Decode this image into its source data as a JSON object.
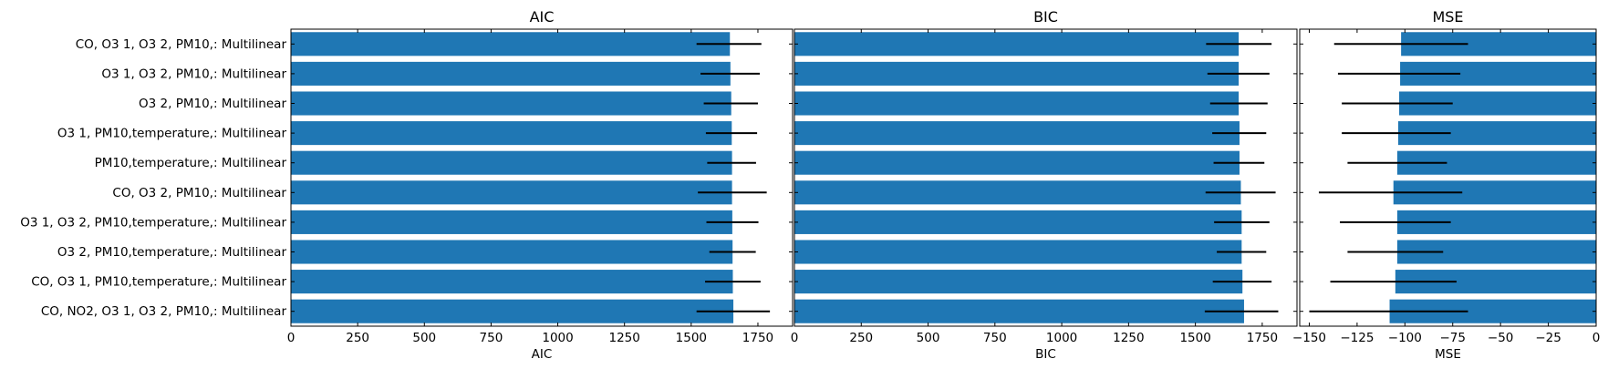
{
  "chart_data": {
    "type": "bar",
    "orientation": "horizontal",
    "categories": [
      "CO, O3 1, O3 2, PM10,: Multilinear",
      "O3 1, O3 2, PM10,: Multilinear",
      "O3 2, PM10,: Multilinear",
      "O3 1, PM10,temperature,: Multilinear",
      "PM10,temperature,: Multilinear",
      "CO, O3 2, PM10,: Multilinear",
      "O3 1, O3 2, PM10,temperature,: Multilinear",
      "O3 2, PM10,temperature,: Multilinear",
      "CO, O3 1, PM10,temperature,: Multilinear",
      "CO, NO2, O3 1, O3 2, PM10,: Multilinear"
    ],
    "bar_color": "#1f77b4",
    "error_color": "#000000",
    "panels": [
      {
        "title": "AIC",
        "xlabel": "AIC",
        "xlim": [
          0,
          1880
        ],
        "ticks": [
          0,
          250,
          500,
          750,
          1000,
          1250,
          1500,
          1750
        ],
        "tick_labels": [
          "0",
          "250",
          "500",
          "750",
          "1000",
          "1250",
          "1500",
          "1750"
        ],
        "values": [
          1645,
          1647,
          1650,
          1652,
          1653,
          1653,
          1654,
          1655,
          1656,
          1658
        ],
        "err_low": [
          1520,
          1535,
          1547,
          1555,
          1560,
          1525,
          1557,
          1568,
          1552,
          1520
        ],
        "err_high": [
          1763,
          1757,
          1750,
          1747,
          1743,
          1783,
          1752,
          1742,
          1760,
          1795
        ]
      },
      {
        "title": "BIC",
        "xlabel": "BIC",
        "xlim": [
          0,
          1880
        ],
        "ticks": [
          0,
          250,
          500,
          750,
          1000,
          1250,
          1500,
          1750
        ],
        "tick_labels": [
          "0",
          "250",
          "500",
          "750",
          "1000",
          "1250",
          "1500",
          "1750"
        ],
        "values": [
          1662,
          1662,
          1662,
          1665,
          1665,
          1670,
          1673,
          1673,
          1676,
          1682
        ],
        "err_low": [
          1540,
          1545,
          1555,
          1563,
          1568,
          1538,
          1570,
          1580,
          1565,
          1535
        ],
        "err_high": [
          1785,
          1777,
          1770,
          1765,
          1758,
          1800,
          1777,
          1765,
          1785,
          1810
        ]
      },
      {
        "title": "MSE",
        "xlabel": "MSE",
        "xlim": [
          -155,
          0
        ],
        "ticks": [
          -150,
          -125,
          -100,
          -75,
          -50,
          -25,
          0
        ],
        "tick_labels": [
          "−150",
          "−125",
          "−100",
          "−75",
          "−50",
          "−25",
          "0"
        ],
        "values": [
          -102,
          -102.5,
          -103,
          -103.5,
          -104,
          -106,
          -104,
          -104,
          -105,
          -108
        ],
        "err_low": [
          -137,
          -135,
          -133,
          -133,
          -130,
          -145,
          -134,
          -130,
          -139,
          -150
        ],
        "err_high": [
          -67,
          -71,
          -75,
          -76,
          -78,
          -70,
          -76,
          -80,
          -73,
          -67
        ]
      }
    ]
  }
}
